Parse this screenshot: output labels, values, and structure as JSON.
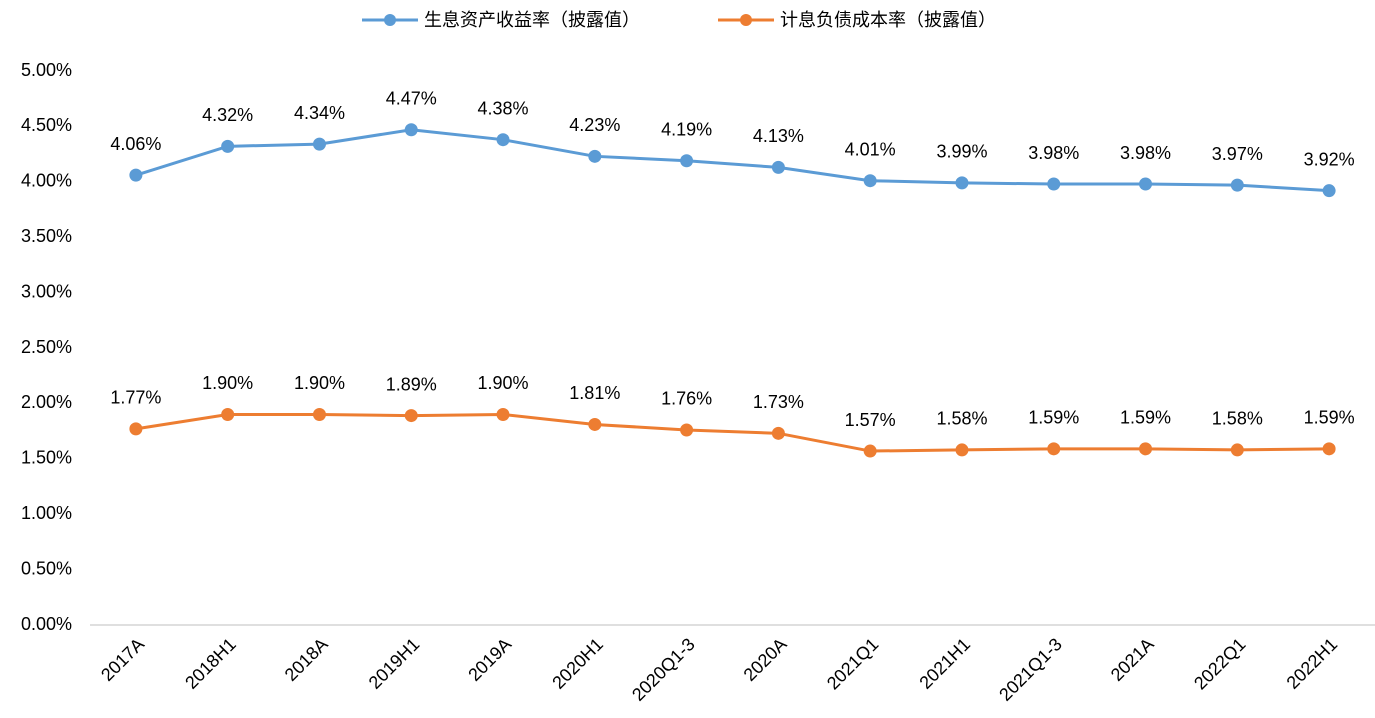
{
  "chart_data": {
    "type": "line",
    "categories": [
      "2017A",
      "2018H1",
      "2018A",
      "2019H1",
      "2019A",
      "2020H1",
      "2020Q1-3",
      "2020A",
      "2021Q1",
      "2021H1",
      "2021Q1-3",
      "2021A",
      "2022Q1",
      "2022H1"
    ],
    "series": [
      {
        "name": "生息资产收益率（披露值）",
        "color": "#5b9bd5",
        "values": [
          4.06,
          4.32,
          4.34,
          4.47,
          4.38,
          4.23,
          4.19,
          4.13,
          4.01,
          3.99,
          3.98,
          3.98,
          3.97,
          3.92
        ],
        "value_labels": [
          "4.06%",
          "4.32%",
          "4.34%",
          "4.47%",
          "4.38%",
          "4.23%",
          "4.19%",
          "4.13%",
          "4.01%",
          "3.99%",
          "3.98%",
          "3.98%",
          "3.97%",
          "3.92%"
        ]
      },
      {
        "name": "计息负债成本率（披露值）",
        "color": "#ed7d31",
        "values": [
          1.77,
          1.9,
          1.9,
          1.89,
          1.9,
          1.81,
          1.76,
          1.73,
          1.57,
          1.58,
          1.59,
          1.59,
          1.58,
          1.59
        ],
        "value_labels": [
          "1.77%",
          "1.90%",
          "1.90%",
          "1.89%",
          "1.90%",
          "1.81%",
          "1.76%",
          "1.73%",
          "1.57%",
          "1.58%",
          "1.59%",
          "1.59%",
          "1.58%",
          "1.59%"
        ]
      }
    ],
    "ylim": [
      0,
      5
    ],
    "yticks": [
      {
        "value": 0,
        "label": "0.00%"
      },
      {
        "value": 0.5,
        "label": "0.50%"
      },
      {
        "value": 1,
        "label": "1.00%"
      },
      {
        "value": 1.5,
        "label": "1.50%"
      },
      {
        "value": 2,
        "label": "2.00%"
      },
      {
        "value": 2.5,
        "label": "2.50%"
      },
      {
        "value": 3,
        "label": "3.00%"
      },
      {
        "value": 3.5,
        "label": "3.50%"
      },
      {
        "value": 4,
        "label": "4.00%"
      },
      {
        "value": 4.5,
        "label": "4.50%"
      },
      {
        "value": 5,
        "label": "5.00%"
      }
    ],
    "grid": false,
    "legend": "top"
  }
}
